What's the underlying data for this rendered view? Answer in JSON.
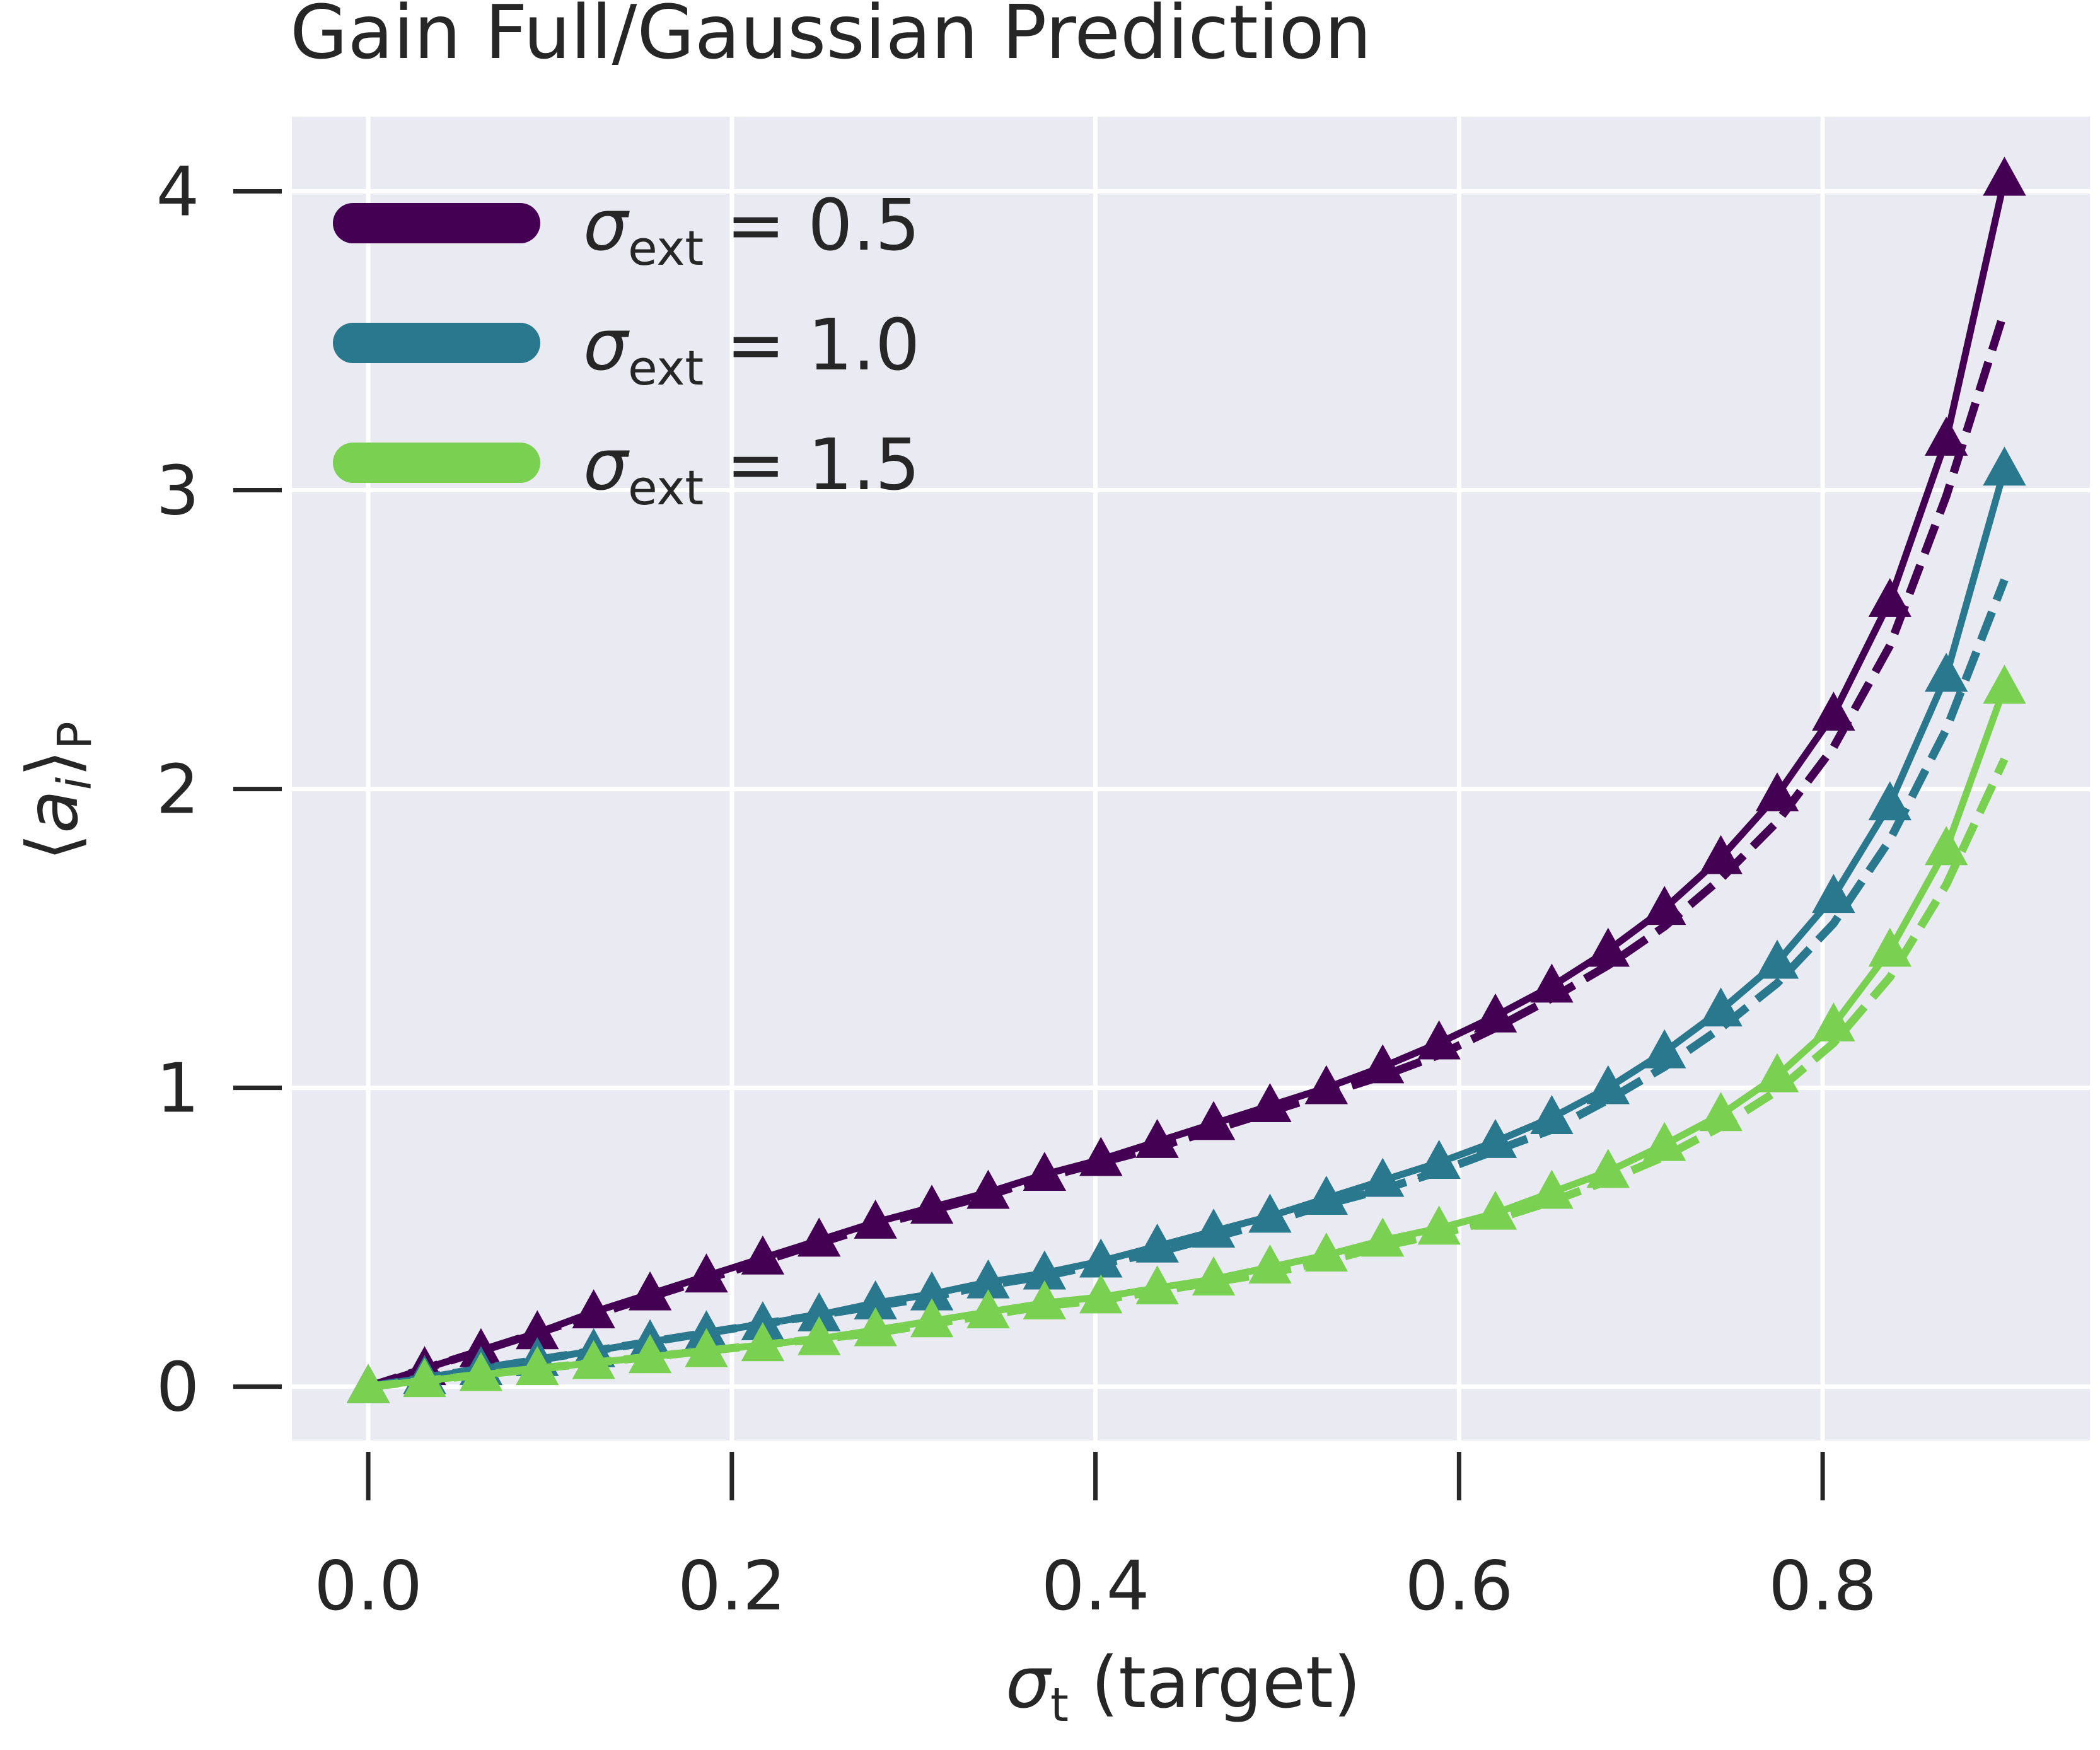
{
  "chart_data": {
    "type": "line",
    "title": "Gain Full/Gaussian Prediction",
    "xlabel": "σ_t (target)",
    "xlabel_parts": {
      "sym": "σ",
      "sub": "t",
      "rest": " (target)"
    },
    "ylabel": "⟨a_i⟩_P",
    "ylabel_parts": {
      "open": "⟨",
      "sym": "a",
      "sub": "i",
      "close": "⟩",
      "sub2": "P"
    },
    "xlim": [
      -0.042,
      0.947
    ],
    "ylim": [
      -0.18,
      4.25
    ],
    "xticks": [
      0.0,
      0.2,
      0.4,
      0.6,
      0.8
    ],
    "xtick_labels": [
      "0.0",
      "0.2",
      "0.4",
      "0.6",
      "0.8"
    ],
    "yticks": [
      0,
      1,
      2,
      3,
      4
    ],
    "ytick_labels": [
      "0",
      "1",
      "2",
      "3",
      "4"
    ],
    "grid": true,
    "legend_position": "top-left",
    "x": [
      0.0,
      0.031,
      0.062,
      0.093,
      0.124,
      0.155,
      0.186,
      0.217,
      0.248,
      0.279,
      0.31,
      0.341,
      0.372,
      0.403,
      0.434,
      0.465,
      0.496,
      0.527,
      0.558,
      0.589,
      0.62,
      0.651,
      0.682,
      0.713,
      0.744,
      0.775,
      0.806,
      0.837,
      0.868,
      0.9
    ],
    "series": [
      {
        "name": "σ_ext = 0.5",
        "legend_parts": {
          "sym": "σ",
          "sub": "ext",
          "rest": " = 0.5"
        },
        "color": "#440154",
        "full": [
          0.0,
          0.06,
          0.12,
          0.18,
          0.25,
          0.31,
          0.37,
          0.43,
          0.49,
          0.55,
          0.6,
          0.65,
          0.71,
          0.76,
          0.82,
          0.88,
          0.94,
          1.0,
          1.07,
          1.15,
          1.24,
          1.34,
          1.46,
          1.6,
          1.77,
          1.98,
          2.25,
          2.63,
          3.17,
          4.04
        ],
        "gaussian": [
          0.0,
          0.06,
          0.12,
          0.18,
          0.24,
          0.3,
          0.36,
          0.42,
          0.48,
          0.54,
          0.59,
          0.64,
          0.7,
          0.75,
          0.8,
          0.86,
          0.92,
          0.98,
          1.04,
          1.11,
          1.2,
          1.3,
          1.41,
          1.54,
          1.7,
          1.89,
          2.14,
          2.48,
          2.98,
          3.6
        ]
      },
      {
        "name": "σ_ext = 1.0",
        "legend_parts": {
          "sym": "σ",
          "sub": "ext",
          "rest": " = 1.0"
        },
        "color": "#2a788e",
        "full": [
          0.0,
          0.03,
          0.06,
          0.09,
          0.12,
          0.15,
          0.18,
          0.21,
          0.24,
          0.28,
          0.31,
          0.35,
          0.38,
          0.42,
          0.47,
          0.52,
          0.57,
          0.63,
          0.69,
          0.75,
          0.82,
          0.9,
          1.0,
          1.12,
          1.26,
          1.42,
          1.64,
          1.95,
          2.38,
          3.07
        ],
        "gaussian": [
          0.0,
          0.03,
          0.06,
          0.09,
          0.12,
          0.15,
          0.18,
          0.21,
          0.24,
          0.27,
          0.3,
          0.34,
          0.37,
          0.41,
          0.45,
          0.5,
          0.55,
          0.61,
          0.66,
          0.72,
          0.79,
          0.86,
          0.96,
          1.07,
          1.2,
          1.35,
          1.55,
          1.83,
          2.2,
          2.7
        ]
      },
      {
        "name": "σ_ext = 1.5",
        "legend_parts": {
          "sym": "σ",
          "sub": "ext",
          "rest": " = 1.5"
        },
        "color": "#7ad151",
        "full": [
          0.0,
          0.02,
          0.04,
          0.06,
          0.08,
          0.1,
          0.12,
          0.14,
          0.16,
          0.19,
          0.22,
          0.25,
          0.28,
          0.3,
          0.33,
          0.36,
          0.4,
          0.44,
          0.49,
          0.53,
          0.58,
          0.65,
          0.72,
          0.81,
          0.91,
          1.04,
          1.21,
          1.46,
          1.8,
          2.34
        ],
        "gaussian": [
          0.0,
          0.02,
          0.04,
          0.06,
          0.08,
          0.1,
          0.12,
          0.14,
          0.16,
          0.18,
          0.21,
          0.24,
          0.27,
          0.29,
          0.32,
          0.35,
          0.38,
          0.42,
          0.47,
          0.51,
          0.56,
          0.62,
          0.69,
          0.77,
          0.87,
          0.99,
          1.15,
          1.37,
          1.68,
          2.1
        ]
      }
    ]
  }
}
